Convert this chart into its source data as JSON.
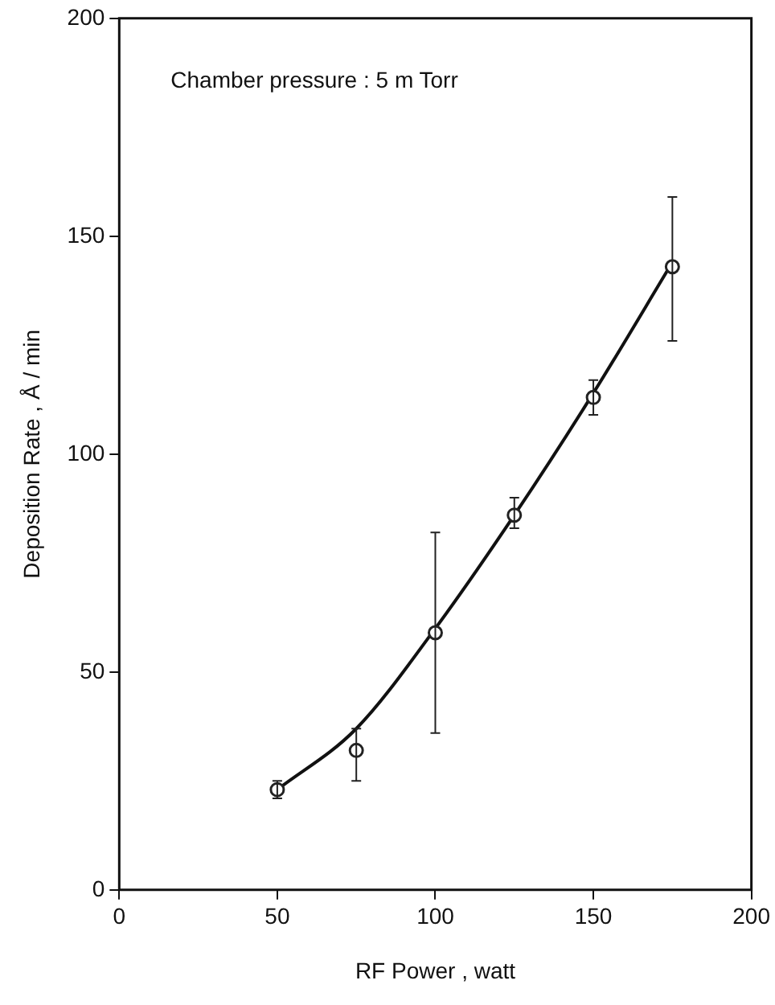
{
  "chart_data": {
    "type": "scatter",
    "xlabel": "RF Power , watt",
    "ylabel": "Deposition Rate , Å / min",
    "annotations": [
      "Chamber pressure : 5 m Torr"
    ],
    "xlim": [
      0,
      200
    ],
    "xticks": [
      0,
      50,
      100,
      150,
      200
    ],
    "ylim": [
      0,
      200
    ],
    "yticks": [
      0,
      50,
      100,
      150,
      200
    ],
    "grid": false,
    "legend": false,
    "marker": "circle",
    "series": [
      {
        "color": "#222222",
        "x": [
          50,
          75,
          100,
          125,
          150,
          175
        ],
        "values": [
          23,
          32,
          59,
          86,
          113,
          143
        ],
        "errors": [
          2,
          [
            25,
            37
          ],
          [
            36,
            82
          ],
          [
            83,
            90
          ],
          [
            109,
            117
          ],
          [
            126,
            159
          ]
        ]
      },
      {
        "type": "line",
        "color": "#111111",
        "marker": "none",
        "line_style": "solid",
        "x": [
          50,
          75,
          100,
          125,
          150,
          175
        ],
        "values": [
          23,
          37,
          60,
          86,
          114,
          144
        ]
      }
    ]
  }
}
